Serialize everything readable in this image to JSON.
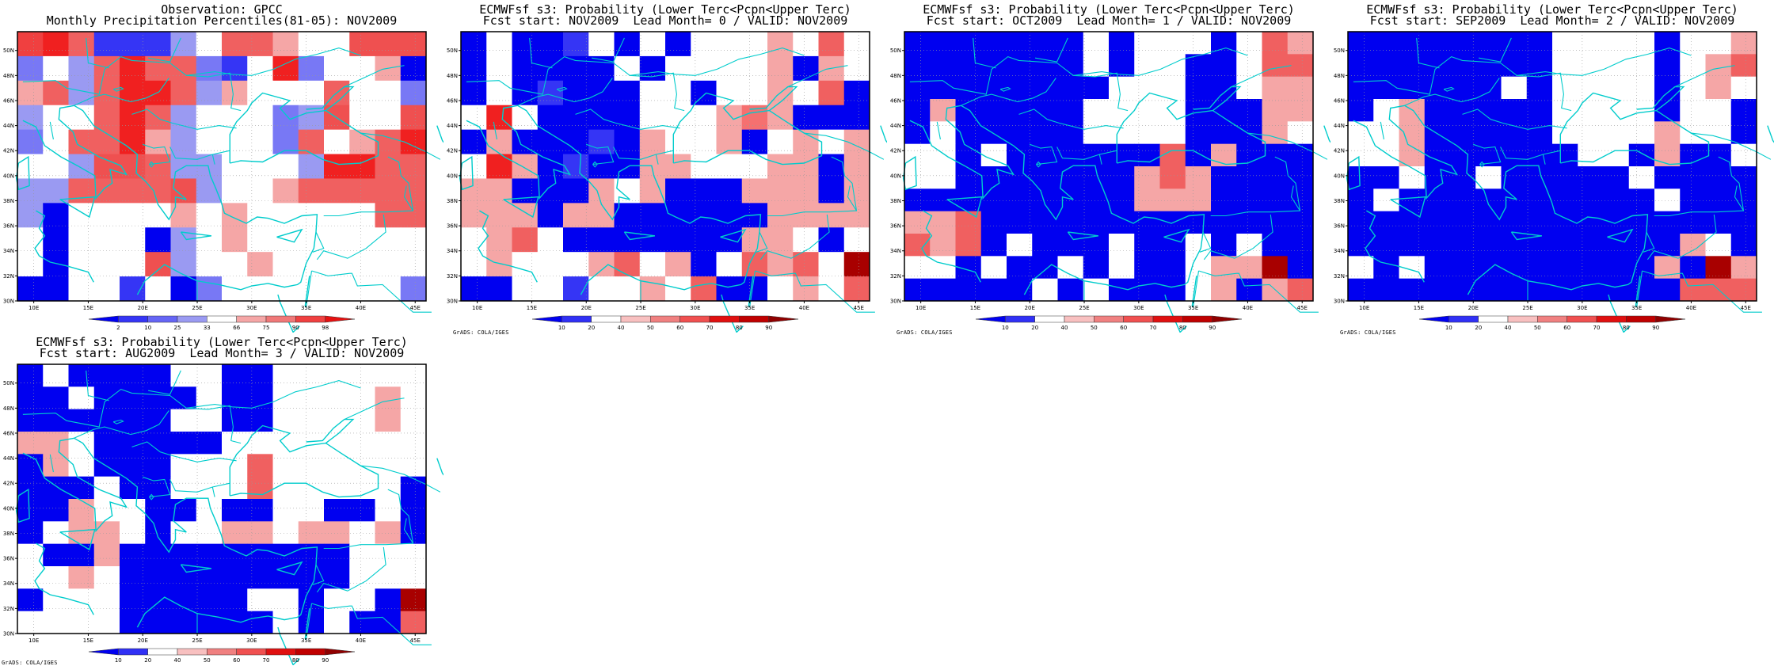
{
  "panels": [
    {
      "title_line1": "Observation: GPCC",
      "title_line2": "Monthly Precipitation Percentiles(81-05): NOV2009",
      "colorbar": {
        "labels": [
          "2",
          "10",
          "25",
          "33",
          "66",
          "75",
          "90",
          "98"
        ]
      },
      "credit": "",
      "grid": [
        "FRrEEEGwrrgwwMMM",
        "WwGrRrrWEwRWwwgB",
        "grGrRRrGgwwwrwwW",
        "GwwrRrGwwwWGMwwM",
        "WwrrRgGwwwWrwgrR",
        "wwGMMrGGwwwGRRrr",
        "GGrrrrMGwwgrrrrr",
        "GBwwwwgwgwwwwwrr",
        "wBwwwBGwgwwwwwww",
        "wBwwwMGwwgwwwwww",
        "BBwwEwBWwwwwwwwW"
      ]
    },
    {
      "title_line1": "ECMWFsf s3: Probability (Lower Terc<Pcpn<Upper Terc)",
      "title_line2": "Fcst start: NOV2009  Lead Month= 0 / VALID: NOV2009",
      "colorbar": {
        "labels": [
          "10",
          "20",
          "40",
          "50",
          "60",
          "70",
          "80",
          "90"
        ]
      },
      "credit": "GrADS: COLA/IGES",
      "grid": [
        "BwBBEwBwBwwwgwrw",
        "BwBBBBwBwwwwgBgw",
        "BwBEBBBwwBwwgwrB",
        "wRwBBBBwwwgpgBBB",
        "BgBBBEBgwwgBwgwg",
        "wRgBEBBggwwwggBg",
        "ggBBBgwgBBBgggBg",
        "gggBggBBBBBBgggg",
        "wgrwBBBBBBBggwBw",
        "wgwwwgrwgBwrgrwx",
        "BBwwEwwgwrBBwgwr"
      ]
    },
    {
      "title_line1": "ECMWFsf s3: Probability (Lower Terc<Pcpn<Upper Terc)",
      "title_line2": "Fcst start: OCT2009  Lead Month= 1 / VALID: NOV2009",
      "colorbar": {
        "labels": [
          "10",
          "20",
          "40",
          "50",
          "60",
          "70",
          "80",
          "90"
        ]
      },
      "credit": "GrADS: COLA/IGES",
      "grid": [
        "BBBBBBBwBwwwBwrg",
        "BBBBBBBwBwwBBwrr",
        "BBBBBBBBwwwBBwgg",
        "BgBBBBBwwwwBBBgg",
        "BwBBBBBwwwwBBBgw",
        "wwBwBBBBBBrBgBBB",
        "wwBBBBBBBgrgBBBB",
        "BBBBBBBBBgggBBBB",
        "ggrBBBBBBBBBBBBB",
        "rgrBwBBBwBBwBwBB",
        "wwBwBBwBwBBwggxB",
        "BBBBBwBwBBBwgBgr"
      ]
    },
    {
      "title_line1": "ECMWFsf s3: Probability (Lower Terc<Pcpn<Upper Terc)",
      "title_line2": "Fcst start: SEP2009  Lead Month= 2 / VALID: NOV2009",
      "colorbar": {
        "labels": [
          "10",
          "20",
          "40",
          "50",
          "60",
          "70",
          "80",
          "90"
        ]
      },
      "credit": "GrADS: COLA/IGES",
      "grid": [
        "BBBBBBBBwwwwBwwg",
        "BBBBBBBBwwwwBwgr",
        "BBBBBBwBwwwwBwgw",
        "BwgBBBBBwwwwBwwB",
        "wwgBBBBBwwwwgwwB",
        "wwgBBBBBBwwBgBBw",
        "BBwBBwBBBBBwBBBB",
        "BwBBBBBBBBBBwBBB",
        "BBBBBBBBBBBBBBBB",
        "BBBBBBBBBBBBBgwB",
        "wBwBBBBBBBBBgBxg",
        "BBBBBBBBBBBBBrrr"
      ]
    },
    {
      "title_line1": "ECMWFsf s3: Probability (Lower Terc<Pcpn<Upper Terc)",
      "title_line2": "Fcst start: AUG2009  Lead Month= 3 / VALID: NOV2009",
      "colorbar": {
        "labels": [
          "10",
          "20",
          "40",
          "50",
          "60",
          "70",
          "80",
          "90"
        ]
      },
      "credit": "GrADS: COLA/IGES",
      "grid": [
        "BwBBBBwwBBwwwwww",
        "BBwBBBBwBBwwwwgw",
        "BBBBBBwwBBwwwwgw",
        "ggwBBBBBwwwwwwww",
        "BgwBBBwwwrwwwwww",
        "BBBwBBwwwrwwwwwB",
        "BBgwwBBwBBwwBBwB",
        "BwggwBwwggwggwgB",
        "wBBgBBBBBBBBBwww",
        "wwgwBBBBBBBBBwww",
        "BwwwBBBBBwwBwwBx",
        "wwwwBBBBBBwBwBBr"
      ]
    }
  ],
  "latitude_labels": [
    "50N",
    "48N",
    "46N",
    "44N",
    "42N",
    "40N",
    "38N",
    "36N",
    "34N",
    "32N",
    "30N"
  ],
  "longitude_labels": [
    "10E",
    "15E",
    "20E",
    "25E",
    "30E",
    "35E",
    "40E",
    "45E"
  ],
  "palette": {
    "B": "#0000f0",
    "E": "#3535f5",
    "W": "#7878f5",
    "G": "#9a9af2",
    "w": "#ffffff",
    "g": "#f5a6a6",
    "r": "#f06060",
    "M": "#ef5050",
    "R": "#f02020",
    "F": "#f04040",
    "p": "#f57070",
    "x": "#a80000"
  },
  "coast_color": "#00cccc",
  "obs_colorbar": [
    "#0000f0",
    "#3535f5",
    "#6565f5",
    "#9a9af2",
    "#ffffff",
    "#f5a6a6",
    "#f07878",
    "#f04040",
    "#e61010"
  ],
  "prob_colorbar": [
    "#0000f0",
    "#3030f5",
    "#ffffff",
    "#f8c0c0",
    "#f08080",
    "#f05050",
    "#e01010",
    "#c00000",
    "#900000"
  ]
}
